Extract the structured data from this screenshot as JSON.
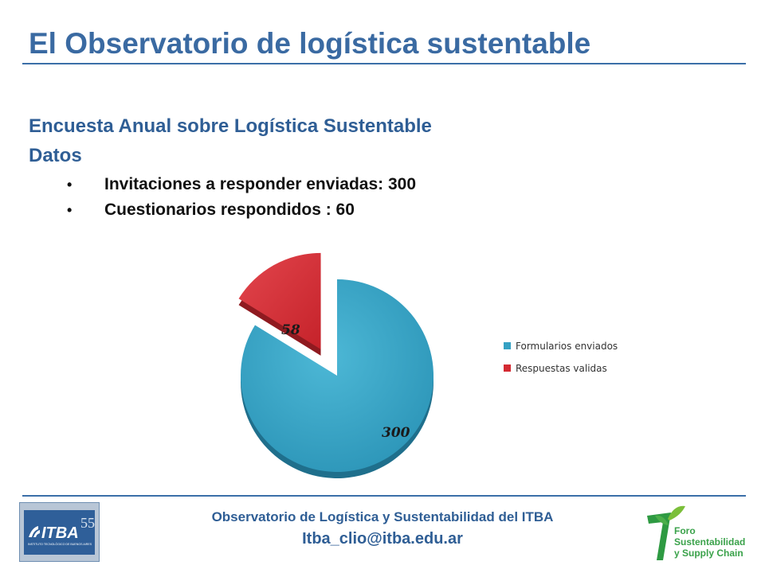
{
  "header": {
    "title": "El Observatorio de logística sustentable"
  },
  "content": {
    "subtitle_line1": "Encuesta Anual sobre Logística Sustentable",
    "subtitle_line2": "Datos",
    "bullet_symbol": "•",
    "bullets": [
      "Invitaciones a responder enviadas: 300",
      "Cuestionarios respondidos : 60"
    ]
  },
  "chart_data": {
    "type": "pie",
    "categories": [
      "Formularios enviados",
      "Respuestas validas"
    ],
    "values": [
      300,
      58
    ],
    "data_labels": [
      "300",
      "58"
    ],
    "colors": [
      "#35a1c3",
      "#d42a32"
    ],
    "exploded": "Respuestas validas",
    "legend": "right"
  },
  "footer": {
    "line1": "Observatorio de Logística y Sustentabilidad del ITBA",
    "line2": "Itba_clio@itba.edu.ar",
    "itba_logo": {
      "text": "ITBA",
      "anniversary": "55",
      "caption": "INSTITUTO TECNOLÓGICO DE BUENOS AIRES"
    },
    "foro_logo": {
      "numeral": "7",
      "lines": [
        "Foro",
        "Sustentabilidad",
        "y Supply Chain"
      ]
    }
  }
}
